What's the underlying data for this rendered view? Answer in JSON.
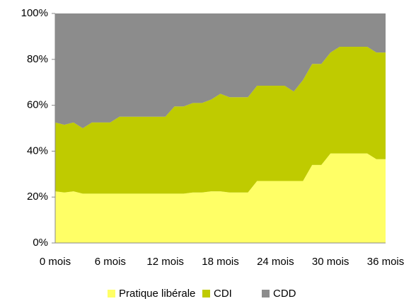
{
  "chart_data": {
    "type": "stacked_area",
    "categories": [
      "0 mois",
      null,
      null,
      null,
      null,
      null,
      "6 mois",
      null,
      null,
      null,
      null,
      null,
      "12 mois",
      null,
      null,
      null,
      null,
      null,
      "18 mois",
      null,
      null,
      null,
      null,
      null,
      "24 mois",
      null,
      null,
      null,
      null,
      null,
      "30 mois",
      null,
      null,
      null,
      null,
      null,
      "36 mois"
    ],
    "series": [
      {
        "name": "Pratique libérale",
        "color": "#ffff66",
        "values": [
          22.5,
          22,
          22.5,
          21.5,
          21.5,
          21.5,
          21.5,
          21.5,
          21.5,
          21.5,
          21.5,
          21.5,
          21.5,
          21.5,
          21.5,
          22,
          22,
          22.5,
          22.5,
          22,
          22,
          22,
          27,
          27,
          27,
          27,
          27,
          27,
          34,
          34,
          39,
          39,
          39,
          39,
          39,
          36.5,
          36.5
        ]
      },
      {
        "name": "CDI",
        "color": "#bfcb00",
        "values": [
          30,
          29.5,
          30,
          28.5,
          31,
          31,
          31,
          33.5,
          33.5,
          33.5,
          33.5,
          33.5,
          33.5,
          38,
          38,
          39,
          39,
          40,
          42.5,
          41.5,
          41.5,
          41.5,
          41.5,
          41.5,
          41.5,
          41.5,
          39,
          44,
          44,
          44,
          44,
          46.5,
          46.5,
          46.5,
          46.5,
          46.5,
          46.5
        ]
      },
      {
        "name": "CDD",
        "color": "#8c8c8c",
        "values": [
          47.5,
          48.5,
          47.5,
          50,
          47.5,
          47.5,
          47.5,
          45,
          45,
          45,
          45,
          45,
          45,
          40.5,
          40.5,
          39,
          39,
          37.5,
          35,
          36.5,
          36.5,
          36.5,
          31.5,
          31.5,
          31.5,
          31.5,
          34,
          29,
          22,
          22,
          17,
          14.5,
          14.5,
          14.5,
          14.5,
          17,
          17
        ]
      }
    ],
    "ylim": [
      0,
      100
    ],
    "yticks": [
      {
        "value": 0,
        "label": "0%"
      },
      {
        "value": 20,
        "label": "20%"
      },
      {
        "value": 40,
        "label": "40%"
      },
      {
        "value": 60,
        "label": "60%"
      },
      {
        "value": 80,
        "label": "80%"
      },
      {
        "value": 100,
        "label": "100%"
      }
    ],
    "grid": false,
    "legend": "bottom"
  }
}
